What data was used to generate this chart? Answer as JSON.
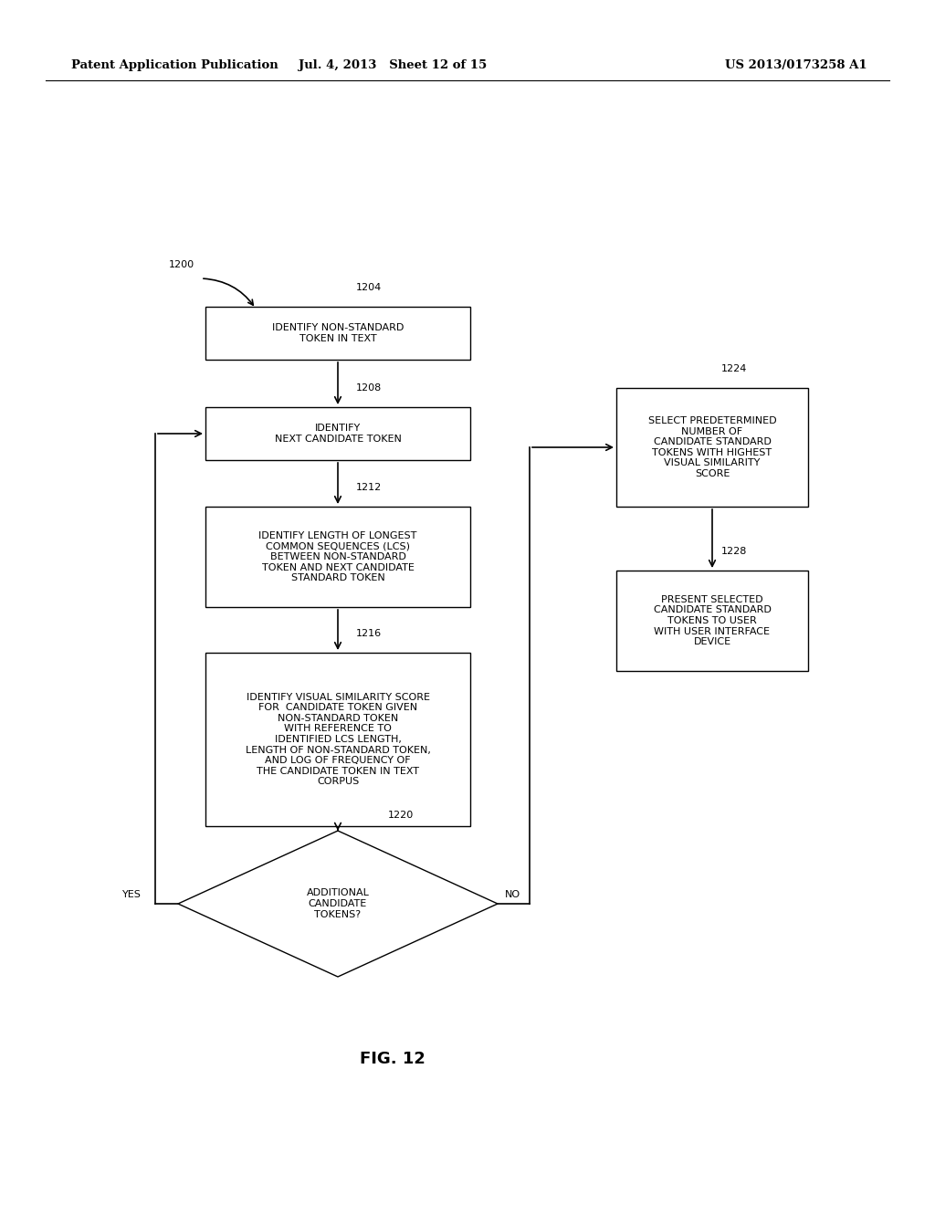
{
  "header_left": "Patent Application Publication",
  "header_mid": "Jul. 4, 2013   Sheet 12 of 15",
  "header_right": "US 2013/0173258 A1",
  "fig_label": "FIG. 12",
  "start_label": "1200",
  "background_color": "#ffffff",
  "box_edge_color": "#000000",
  "text_color": "#000000",
  "arrow_color": "#000000",
  "fontsize": 8.0,
  "label_fontsize": 8.0,
  "header_fontsize": 9.5
}
